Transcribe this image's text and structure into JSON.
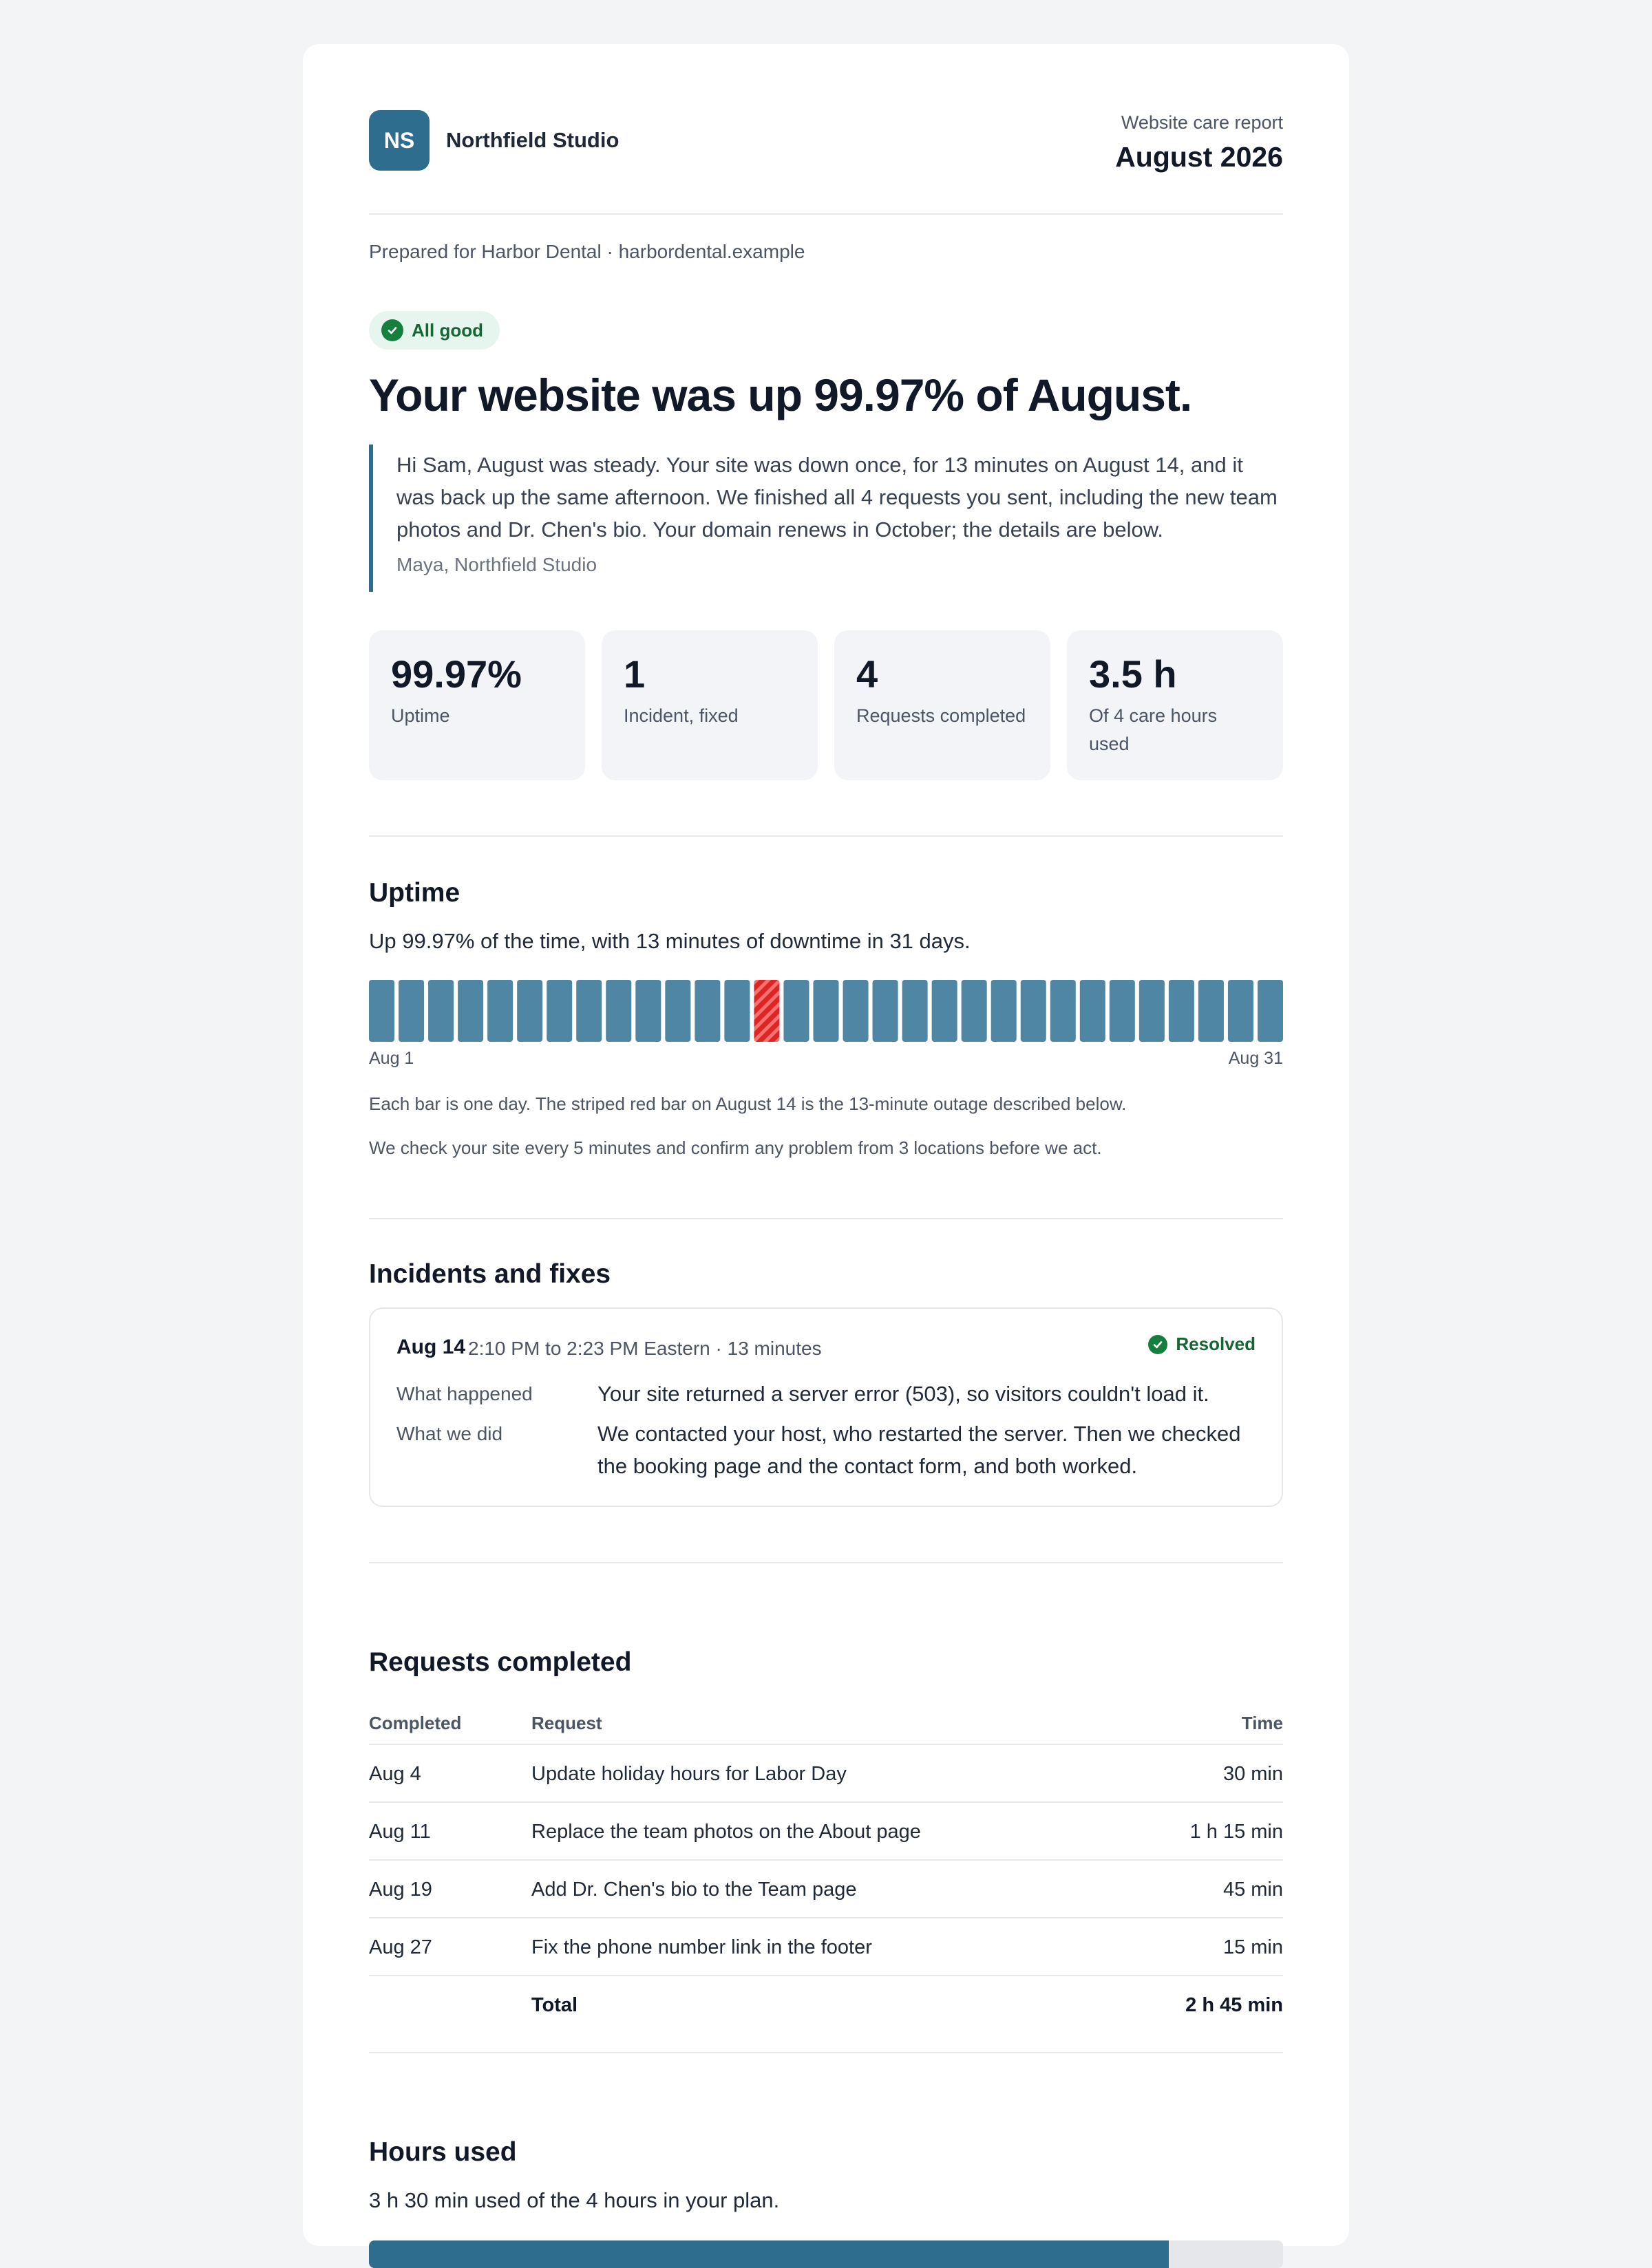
{
  "header": {
    "logo_initials": "NS",
    "studio_name": "Northfield Studio",
    "report_label": "Website care report",
    "report_month": "August 2026"
  },
  "prepared_for": "Prepared for Harbor Dental · harbordental.example",
  "status": {
    "badge": "All good",
    "headline": "Your website was up 99.97% of August.",
    "message": "Hi Sam, August was steady. Your site was down once, for 13 minutes on August 14, and it was back up the same afternoon. We finished all 4 requests you sent, including the new team photos and Dr. Chen's bio. Your domain renews in October; the details are below.",
    "signature": "Maya, Northfield Studio"
  },
  "stats": [
    {
      "value": "99.97%",
      "label": "Uptime"
    },
    {
      "value": "1",
      "label": "Incident, fixed"
    },
    {
      "value": "4",
      "label": "Requests completed"
    },
    {
      "value": "3.5 h",
      "label": "Of 4 care hours used"
    }
  ],
  "uptime": {
    "title": "Uptime",
    "summary": "Up 99.97% of the time, with 13 minutes of downtime in 31 days.",
    "days": 31,
    "outage_day": 14,
    "start_label": "Aug 1",
    "end_label": "Aug 31",
    "note1": "Each bar is one day. The striped red bar on August 14 is the 13-minute outage described below.",
    "note2": "We check your site every 5 minutes and confirm any problem from 3 locations before we act.",
    "colors": {
      "ok": "#4f86a3",
      "outage": "#dc2626"
    }
  },
  "incidents": {
    "title": "Incidents and fixes",
    "date": "Aug 14",
    "time": "2:10 PM to 2:23 PM Eastern · 13 minutes",
    "status": "Resolved",
    "what_happened_label": "What happened",
    "what_happened": "Your site returned a server error (503), so visitors couldn't load it.",
    "what_we_did_label": "What we did",
    "what_we_did": "We contacted your host, who restarted the server. Then we checked the booking page and the contact form, and both worked."
  },
  "requests": {
    "title": "Requests completed",
    "headers": [
      "Completed",
      "Request",
      "Time"
    ],
    "rows": [
      [
        "Aug 4",
        "Update holiday hours for Labor Day",
        "30 min"
      ],
      [
        "Aug 11",
        "Replace the team photos on the About page",
        "1 h 15 min"
      ],
      [
        "Aug 19",
        "Add Dr. Chen's bio to the Team page",
        "45 min"
      ],
      [
        "Aug 27",
        "Fix the phone number link in the footer",
        "15 min"
      ]
    ],
    "total_label": "Total",
    "total_value": "2 h 45 min"
  },
  "hours": {
    "title": "Hours used",
    "summary": "3 h 30 min used of the 4 hours in your plan.",
    "used_fraction": 0.875
  }
}
